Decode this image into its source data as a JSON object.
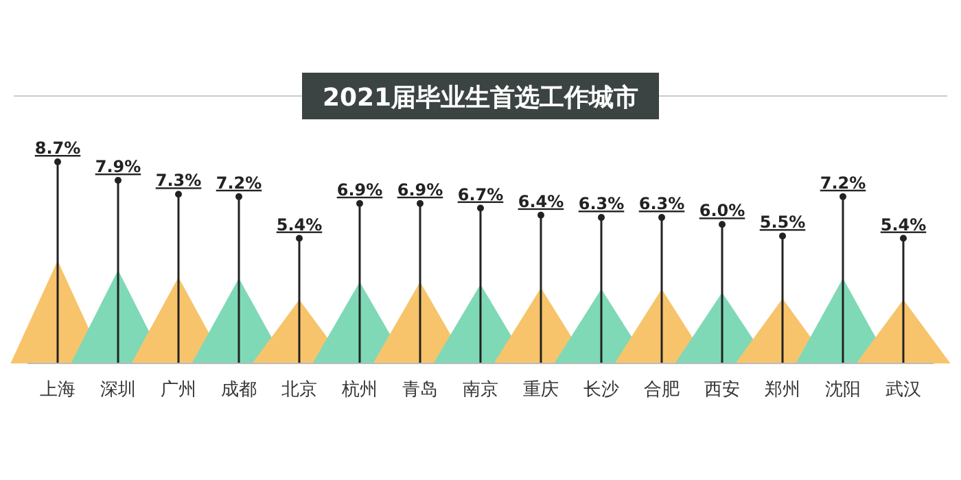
{
  "chart_data": {
    "type": "lollipop",
    "title": "2021届毕业生首选工作城市",
    "categories": [
      "上海",
      "深圳",
      "广州",
      "成都",
      "北京",
      "杭州",
      "青岛",
      "南京",
      "重庆",
      "长沙",
      "合肥",
      "西安",
      "郑州",
      "沈阳",
      "武汉"
    ],
    "values": [
      8.7,
      7.9,
      7.3,
      7.2,
      5.4,
      6.9,
      6.9,
      6.7,
      6.4,
      6.3,
      6.3,
      6.0,
      5.5,
      7.2,
      5.4
    ],
    "value_labels": [
      "8.7%",
      "7.9%",
      "7.3%",
      "7.2%",
      "5.4%",
      "6.9%",
      "6.9%",
      "6.7%",
      "6.4%",
      "6.3%",
      "6.3%",
      "6.0%",
      "5.5%",
      "7.2%",
      "5.4%"
    ],
    "color": "#222222"
  }
}
